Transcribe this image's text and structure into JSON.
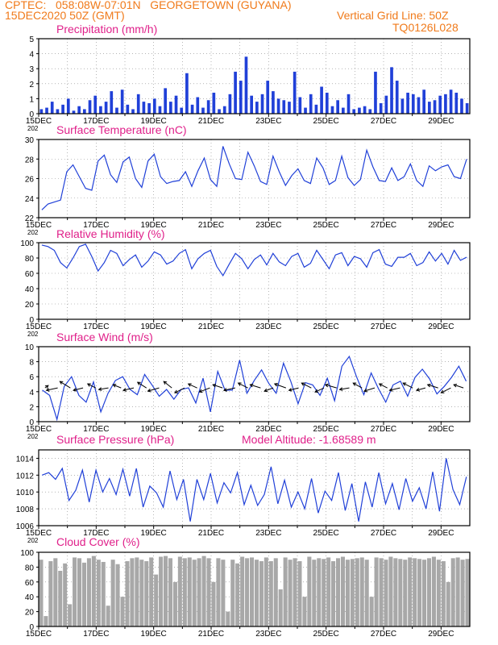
{
  "header": {
    "line1_left": "CPTEC:   058:08W-07:01N   GEORGETOWN (GUYANA)",
    "line2_left": "15DEC2020 50Z (GMT)",
    "line2_right": "Vertical Grid Line: 50Z",
    "line3_right": "TQ0126L028"
  },
  "colors": {
    "header": "#f07a1a",
    "title": "#e0208a",
    "series": "#2040d8",
    "cloud": "#a8a8a8",
    "wind": "#000000"
  },
  "x_axis": {
    "ticks": [
      "15DEC",
      "17DEC",
      "19DEC",
      "21DEC",
      "23DEC",
      "25DEC",
      "27DEC",
      "29DEC"
    ],
    "year_fragment": "202",
    "days": 15
  },
  "chart_data": [
    {
      "type": "bar",
      "title": "Precipitation (mm/h)",
      "ylim": [
        0,
        5
      ],
      "yticks": [
        "0",
        "1",
        "2",
        "3",
        "4",
        "5"
      ],
      "note": "hourly precipitation bars, 15DEC–29DEC 2020",
      "series": [
        {
          "values": [
            0.3,
            0.4,
            0.8,
            0.3,
            0.6,
            1.0,
            0.2,
            0.5,
            0.3,
            0.9,
            1.2,
            0.5,
            0.8,
            1.5,
            0.4,
            1.6,
            0.6,
            0.3,
            1.3,
            0.8,
            0.7,
            1.0,
            0.5,
            1.7,
            0.8,
            1.2,
            0.4,
            2.7,
            0.6,
            1.1,
            0.4,
            0.9,
            1.4,
            0.3,
            0.5,
            1.3,
            2.8,
            2.2,
            3.8,
            1.2,
            0.8,
            1.3,
            2.2,
            1.5,
            1.0,
            0.9,
            0.8,
            2.8,
            1.1,
            0.4,
            1.3,
            0.6,
            1.8,
            1.4,
            0.5,
            0.9,
            0.4,
            1.3,
            0.3,
            0.4,
            0.5,
            0.3,
            2.8,
            0.7,
            1.2,
            3.1,
            2.2,
            1.0,
            1.4,
            1.3,
            1.1,
            1.6,
            0.8,
            0.9,
            1.2,
            1.3,
            1.6,
            1.4,
            1.0,
            0.7
          ]
        }
      ]
    },
    {
      "type": "line",
      "title": "Surface Temperature (nC)",
      "ylim": [
        22,
        30
      ],
      "yticks": [
        "22",
        "24",
        "26",
        "28",
        "30"
      ],
      "series": [
        {
          "values": [
            22.8,
            23.4,
            23.6,
            23.8,
            26.7,
            27.4,
            26.2,
            25.0,
            24.8,
            27.8,
            28.4,
            26.4,
            25.6,
            27.7,
            28.2,
            26.0,
            25.1,
            27.8,
            28.5,
            26.2,
            25.5,
            25.7,
            25.8,
            26.7,
            25.2,
            26.8,
            28.1,
            25.9,
            25.2,
            29.3,
            27.5,
            26.0,
            25.9,
            28.7,
            27.3,
            25.7,
            25.4,
            28.3,
            26.7,
            25.3,
            26.3,
            27.0,
            25.8,
            25.5,
            28.1,
            27.1,
            25.4,
            25.8,
            28.3,
            26.1,
            25.3,
            25.9,
            28.9,
            27.2,
            25.8,
            25.7,
            27.1,
            25.8,
            26.2,
            27.5,
            25.8,
            25.2,
            27.3,
            26.8,
            27.2,
            27.4,
            26.2,
            26.0,
            28.0
          ]
        }
      ]
    },
    {
      "type": "line",
      "title": "Relative Humidity (%)",
      "ylim": [
        0,
        100
      ],
      "yticks": [
        "0",
        "20",
        "40",
        "60",
        "80",
        "100"
      ],
      "series": [
        {
          "values": [
            97,
            95,
            90,
            74,
            67,
            80,
            95,
            98,
            82,
            63,
            74,
            90,
            86,
            70,
            78,
            84,
            68,
            76,
            88,
            84,
            72,
            76,
            86,
            91,
            66,
            79,
            86,
            90,
            69,
            57,
            72,
            86,
            79,
            66,
            78,
            84,
            71,
            86,
            75,
            70,
            82,
            86,
            68,
            73,
            90,
            78,
            66,
            84,
            87,
            70,
            82,
            79,
            68,
            87,
            91,
            72,
            69,
            81,
            81,
            86,
            70,
            74,
            88,
            76,
            86,
            72,
            90,
            77,
            81
          ]
        }
      ]
    },
    {
      "type": "line",
      "title": "Surface Wind (m/s)",
      "ylim": [
        0,
        10
      ],
      "yticks": [
        "0",
        "2",
        "4",
        "6",
        "8",
        "10"
      ],
      "note": "wind speed line with direction arrows",
      "series": [
        {
          "values": [
            4.2,
            3.5,
            0.3,
            4.7,
            6.0,
            3.5,
            2.6,
            5.3,
            1.3,
            3.8,
            5.5,
            6.0,
            4.3,
            3.6,
            6.3,
            4.9,
            3.4,
            4.3,
            3.0,
            4.3,
            4.5,
            2.5,
            5.8,
            1.3,
            6.7,
            4.2,
            4.2,
            8.2,
            3.8,
            5.5,
            6.9,
            5.1,
            3.8,
            7.8,
            5.4,
            2.4,
            5.2,
            4.9,
            3.5,
            5.8,
            2.8,
            7.4,
            8.7,
            6.0,
            3.6,
            6.5,
            4.4,
            2.6,
            4.9,
            5.4,
            3.4,
            5.9,
            7.0,
            5.7,
            3.7,
            4.7,
            5.9,
            7.4,
            5.4
          ]
        }
      ],
      "wind_vectors": [
        [
          4,
          -3
        ],
        [
          -14,
          3
        ],
        [
          -13,
          -8
        ],
        [
          -12,
          3
        ],
        [
          -10,
          -5
        ],
        [
          -12,
          2
        ],
        [
          -10,
          -4
        ],
        [
          -13,
          3
        ],
        [
          -11,
          -7
        ],
        [
          -14,
          4
        ],
        [
          -10,
          -8
        ],
        [
          -12,
          6
        ],
        [
          -11,
          -5
        ],
        [
          -13,
          5
        ],
        [
          -12,
          -4
        ],
        [
          -14,
          3
        ],
        [
          -12,
          -6
        ],
        [
          -13,
          -4
        ],
        [
          -11,
          4
        ],
        [
          -14,
          -5
        ],
        [
          -12,
          3
        ],
        [
          -12,
          -6
        ],
        [
          -11,
          5
        ],
        [
          -14,
          -4
        ],
        [
          -12,
          2
        ],
        [
          -11,
          -6
        ],
        [
          -13,
          4
        ],
        [
          -10,
          -5
        ],
        [
          -13,
          3
        ],
        [
          -12,
          -6
        ],
        [
          -11,
          3
        ],
        [
          -13,
          -4
        ],
        [
          -12,
          6
        ],
        [
          -12,
          -4
        ]
      ]
    },
    {
      "type": "line",
      "title": "Surface Pressure (hPa)",
      "annotation": "Model Altitude: -1.68589 m",
      "ylim": [
        1006,
        1015
      ],
      "yticks": [
        "1006",
        "1008",
        "1010",
        "1012",
        "1014"
      ],
      "series": [
        {
          "values": [
            1012,
            1012.3,
            1011.5,
            1012.8,
            1009,
            1010.2,
            1012.6,
            1008.8,
            1012.6,
            1010,
            1011.6,
            1009.7,
            1012.7,
            1009.5,
            1012.8,
            1008.2,
            1010.7,
            1009.9,
            1008.2,
            1012.5,
            1009.1,
            1011.5,
            1006.5,
            1011.5,
            1009.1,
            1012.2,
            1008.7,
            1011.1,
            1009.9,
            1012.3,
            1008.5,
            1010.8,
            1008.4,
            1009.7,
            1013,
            1008.6,
            1011.4,
            1008.2,
            1010,
            1008,
            1011.6,
            1007.5,
            1010.1,
            1009,
            1012.3,
            1007.8,
            1011,
            1006.5,
            1011.2,
            1008.2,
            1012.3,
            1008.6,
            1011,
            1007.9,
            1011.6,
            1008.9,
            1010.5,
            1008,
            1012.4,
            1007.7,
            1014,
            1010.3,
            1008.5,
            1011.8
          ]
        }
      ]
    },
    {
      "type": "bar",
      "title": "Cloud Cover (%)",
      "ylim": [
        0,
        100
      ],
      "yticks": [
        "0",
        "20",
        "40",
        "60",
        "80",
        "100"
      ],
      "series": [
        {
          "values": [
            90,
            14,
            88,
            92,
            75,
            85,
            30,
            93,
            92,
            86,
            92,
            95,
            90,
            87,
            28,
            90,
            84,
            40,
            88,
            92,
            93,
            90,
            88,
            93,
            70,
            94,
            95,
            92,
            60,
            94,
            92,
            93,
            90,
            92,
            95,
            92,
            60,
            92,
            90,
            20,
            90,
            85,
            94,
            92,
            93,
            90,
            88,
            93,
            88,
            92,
            50,
            93,
            90,
            92,
            88,
            40,
            94,
            90,
            92,
            91,
            93,
            88,
            92,
            94,
            90,
            91,
            92,
            93,
            90,
            40,
            93,
            92,
            90,
            94,
            92,
            91,
            90,
            93,
            92,
            91,
            90,
            92,
            94,
            90,
            88,
            60,
            92,
            93,
            90,
            91
          ]
        }
      ]
    }
  ]
}
